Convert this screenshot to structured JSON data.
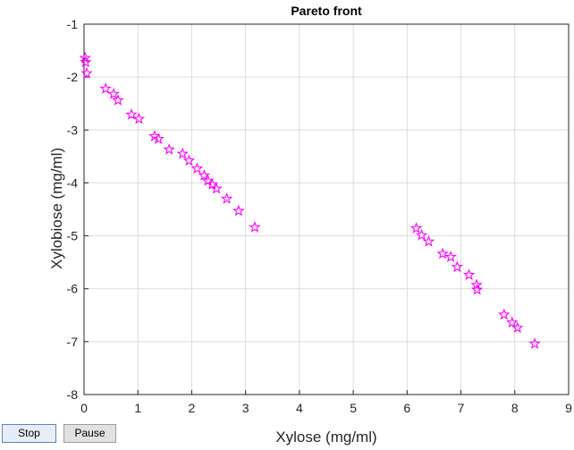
{
  "chart_data": {
    "type": "scatter",
    "title": "Pareto front",
    "xlabel": "Xylose (mg/ml)",
    "ylabel": "Xylobiose (mg/ml)",
    "xlim": [
      0,
      9
    ],
    "ylim": [
      -8,
      -1
    ],
    "xticks": [
      0,
      1,
      2,
      3,
      4,
      5,
      6,
      7,
      8,
      9
    ],
    "yticks": [
      -8,
      -7,
      -6,
      -5,
      -4,
      -3,
      -2,
      -1
    ],
    "grid": true,
    "marker": "pentagram",
    "marker_color": "#ff00ff",
    "points": [
      {
        "x": 0.02,
        "y": -1.64
      },
      {
        "x": 0.03,
        "y": -1.72
      },
      {
        "x": 0.05,
        "y": -1.93
      },
      {
        "x": 0.4,
        "y": -2.22
      },
      {
        "x": 0.55,
        "y": -2.32
      },
      {
        "x": 0.63,
        "y": -2.44
      },
      {
        "x": 0.88,
        "y": -2.71
      },
      {
        "x": 1.02,
        "y": -2.79
      },
      {
        "x": 1.31,
        "y": -3.12
      },
      {
        "x": 1.38,
        "y": -3.17
      },
      {
        "x": 1.58,
        "y": -3.37
      },
      {
        "x": 1.83,
        "y": -3.45
      },
      {
        "x": 1.95,
        "y": -3.58
      },
      {
        "x": 2.1,
        "y": -3.73
      },
      {
        "x": 2.23,
        "y": -3.86
      },
      {
        "x": 2.3,
        "y": -3.96
      },
      {
        "x": 2.38,
        "y": -4.03
      },
      {
        "x": 2.46,
        "y": -4.11
      },
      {
        "x": 2.65,
        "y": -4.3
      },
      {
        "x": 2.87,
        "y": -4.53
      },
      {
        "x": 3.17,
        "y": -4.84
      },
      {
        "x": 6.17,
        "y": -4.86
      },
      {
        "x": 6.27,
        "y": -4.99
      },
      {
        "x": 6.4,
        "y": -5.11
      },
      {
        "x": 6.66,
        "y": -5.34
      },
      {
        "x": 6.81,
        "y": -5.4
      },
      {
        "x": 6.93,
        "y": -5.59
      },
      {
        "x": 7.15,
        "y": -5.74
      },
      {
        "x": 7.29,
        "y": -5.93
      },
      {
        "x": 7.3,
        "y": -6.02
      },
      {
        "x": 7.8,
        "y": -6.49
      },
      {
        "x": 7.95,
        "y": -6.64
      },
      {
        "x": 8.05,
        "y": -6.74
      },
      {
        "x": 8.37,
        "y": -7.04
      }
    ]
  },
  "controls": {
    "stop_label": "Stop",
    "pause_label": "Pause"
  }
}
